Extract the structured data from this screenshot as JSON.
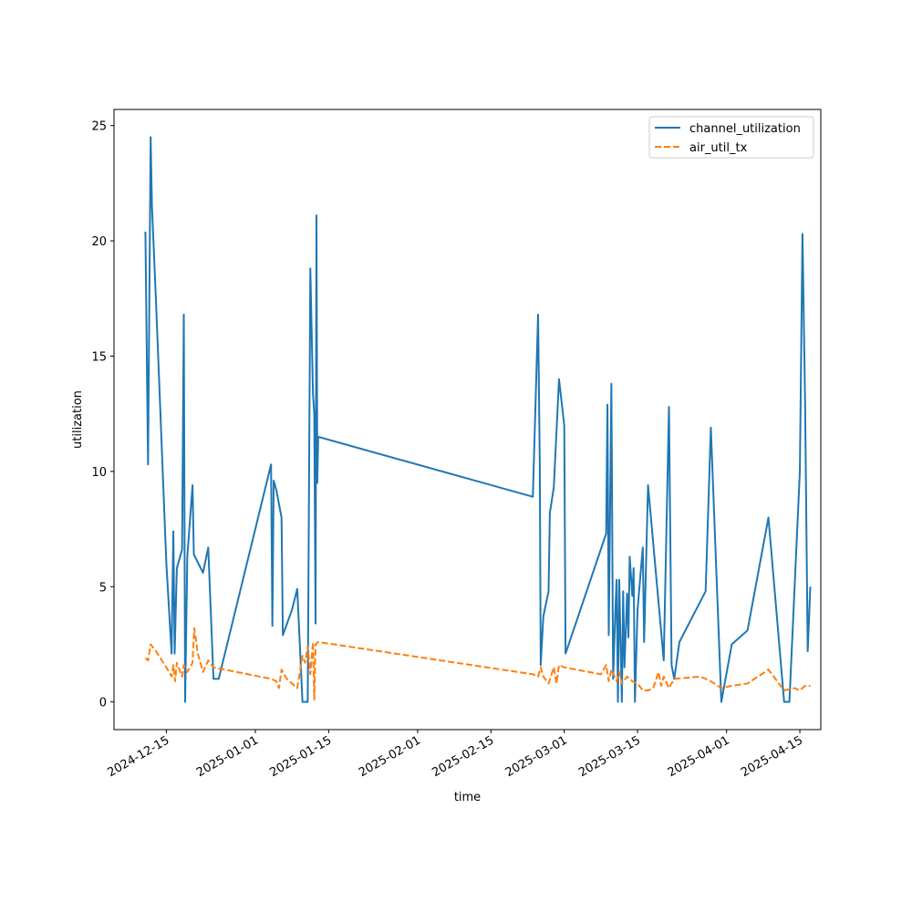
{
  "chart_data": {
    "type": "line",
    "title": "",
    "xlabel": "time",
    "ylabel": "utilization",
    "xlim": [
      "2024-12-05",
      "2025-04-19"
    ],
    "ylim": [
      -1.2,
      25.7
    ],
    "y_ticks": [
      0,
      5,
      10,
      15,
      20,
      25
    ],
    "x_ticks": [
      "2024-12-15",
      "2025-01-01",
      "2025-01-15",
      "2025-02-01",
      "2025-02-15",
      "2025-03-01",
      "2025-03-15",
      "2025-04-01",
      "2025-04-15"
    ],
    "grid": false,
    "legend_position": "top-right",
    "series": [
      {
        "name": "channel_utilization",
        "color": "#1f77b4",
        "style": "solid",
        "points": [
          [
            "2024-12-11",
            20.4
          ],
          [
            "2024-12-11 12:00",
            10.3
          ],
          [
            "2024-12-12",
            24.5
          ],
          [
            "2024-12-12 06:00",
            21.5
          ],
          [
            "2024-12-13",
            17.5
          ],
          [
            "2024-12-15",
            6.0
          ],
          [
            "2024-12-16",
            2.1
          ],
          [
            "2024-12-16 08:00",
            7.4
          ],
          [
            "2024-12-16 14:00",
            2.1
          ],
          [
            "2024-12-17",
            5.8
          ],
          [
            "2024-12-18",
            6.6
          ],
          [
            "2024-12-18 08:00",
            16.8
          ],
          [
            "2024-12-18 14:00",
            0.0
          ],
          [
            "2024-12-19",
            6.3
          ],
          [
            "2024-12-20",
            9.4
          ],
          [
            "2024-12-20 06:00",
            6.4
          ],
          [
            "2024-12-22",
            5.6
          ],
          [
            "2024-12-23",
            6.7
          ],
          [
            "2024-12-24",
            1.0
          ],
          [
            "2024-12-25",
            1.0
          ],
          [
            "2025-01-04",
            10.3
          ],
          [
            "2025-01-04 06:00",
            3.3
          ],
          [
            "2025-01-04 12:00",
            9.6
          ],
          [
            "2025-01-05",
            9.2
          ],
          [
            "2025-01-06",
            8.0
          ],
          [
            "2025-01-06 06:00",
            2.9
          ],
          [
            "2025-01-08",
            4.0
          ],
          [
            "2025-01-09",
            4.9
          ],
          [
            "2025-01-10",
            0.0
          ],
          [
            "2025-01-11",
            0.0
          ],
          [
            "2025-01-11 12:00",
            18.8
          ],
          [
            "2025-01-12",
            13.4
          ],
          [
            "2025-01-12 06:00",
            12.5
          ],
          [
            "2025-01-12 12:00",
            3.4
          ],
          [
            "2025-01-12 16:00",
            21.1
          ],
          [
            "2025-01-12 20:00",
            9.5
          ],
          [
            "2025-01-13",
            11.5
          ],
          [
            "2025-02-23",
            8.9
          ],
          [
            "2025-02-24",
            16.8
          ],
          [
            "2025-02-24 08:00",
            10.2
          ],
          [
            "2025-02-24 12:00",
            1.6
          ],
          [
            "2025-02-25",
            3.7
          ],
          [
            "2025-02-26",
            4.8
          ],
          [
            "2025-02-26 06:00",
            8.2
          ],
          [
            "2025-02-27",
            9.3
          ],
          [
            "2025-02-28",
            14.0
          ],
          [
            "2025-03-01",
            12.0
          ],
          [
            "2025-03-01 06:00",
            2.1
          ],
          [
            "2025-03-09",
            7.3
          ],
          [
            "2025-03-09 06:00",
            12.9
          ],
          [
            "2025-03-09 12:00",
            2.9
          ],
          [
            "2025-03-10",
            13.8
          ],
          [
            "2025-03-10 08:00",
            1.0
          ],
          [
            "2025-03-10 18:00",
            3.9
          ],
          [
            "2025-03-11",
            5.3
          ],
          [
            "2025-03-11 06:00",
            0.0
          ],
          [
            "2025-03-11 12:00",
            5.3
          ],
          [
            "2025-03-12",
            0.0
          ],
          [
            "2025-03-12 06:00",
            4.8
          ],
          [
            "2025-03-12 12:00",
            1.5
          ],
          [
            "2025-03-13",
            4.7
          ],
          [
            "2025-03-13 06:00",
            2.8
          ],
          [
            "2025-03-13 12:00",
            6.3
          ],
          [
            "2025-03-14",
            4.6
          ],
          [
            "2025-03-14 06:00",
            5.8
          ],
          [
            "2025-03-14 12:00",
            0.0
          ],
          [
            "2025-03-15",
            4.0
          ],
          [
            "2025-03-16",
            6.7
          ],
          [
            "2025-03-16 06:00",
            2.6
          ],
          [
            "2025-03-17",
            9.4
          ],
          [
            "2025-03-20",
            1.8
          ],
          [
            "2025-03-21",
            12.8
          ],
          [
            "2025-03-21 12:00",
            1.6
          ],
          [
            "2025-03-22",
            1.0
          ],
          [
            "2025-03-23",
            2.6
          ],
          [
            "2025-03-28",
            4.8
          ],
          [
            "2025-03-29",
            11.9
          ],
          [
            "2025-03-31",
            0.0
          ],
          [
            "2025-04-02",
            2.5
          ],
          [
            "2025-04-05",
            3.1
          ],
          [
            "2025-04-09",
            8.0
          ],
          [
            "2025-04-12",
            0.0
          ],
          [
            "2025-04-13",
            0.0
          ],
          [
            "2025-04-15",
            10.0
          ],
          [
            "2025-04-15 12:00",
            20.3
          ],
          [
            "2025-04-16",
            13.0
          ],
          [
            "2025-04-16 12:00",
            2.2
          ],
          [
            "2025-04-17",
            5.0
          ]
        ]
      },
      {
        "name": "air_util_tx",
        "color": "#ff7f0e",
        "style": "dashed",
        "points": [
          [
            "2024-12-11",
            1.9
          ],
          [
            "2024-12-11 12:00",
            1.8
          ],
          [
            "2024-12-12",
            2.5
          ],
          [
            "2024-12-13",
            2.2
          ],
          [
            "2024-12-15",
            1.5
          ],
          [
            "2024-12-16",
            1.1
          ],
          [
            "2024-12-16 08:00",
            1.6
          ],
          [
            "2024-12-16 16:00",
            0.9
          ],
          [
            "2024-12-17",
            1.7
          ],
          [
            "2024-12-18",
            1.1
          ],
          [
            "2024-12-18 08:00",
            1.6
          ],
          [
            "2024-12-19",
            1.3
          ],
          [
            "2024-12-20",
            1.7
          ],
          [
            "2024-12-20 08:00",
            3.2
          ],
          [
            "2024-12-21",
            2.1
          ],
          [
            "2024-12-22",
            1.3
          ],
          [
            "2024-12-23",
            1.8
          ],
          [
            "2024-12-24",
            1.5
          ],
          [
            "2025-01-04",
            1.0
          ],
          [
            "2025-01-05",
            0.9
          ],
          [
            "2025-01-05 12:00",
            0.6
          ],
          [
            "2025-01-06",
            1.4
          ],
          [
            "2025-01-07",
            1.0
          ],
          [
            "2025-01-08",
            0.8
          ],
          [
            "2025-01-09",
            0.6
          ],
          [
            "2025-01-10",
            2.0
          ],
          [
            "2025-01-10 12:00",
            1.7
          ],
          [
            "2025-01-11",
            2.4
          ],
          [
            "2025-01-11 12:00",
            1.2
          ],
          [
            "2025-01-12",
            2.6
          ],
          [
            "2025-01-12 06:00",
            0.1
          ],
          [
            "2025-01-12 12:00",
            2.5
          ],
          [
            "2025-01-13",
            2.6
          ],
          [
            "2025-02-23",
            1.2
          ],
          [
            "2025-02-24",
            1.1
          ],
          [
            "2025-02-24 12:00",
            1.5
          ],
          [
            "2025-02-25",
            1.1
          ],
          [
            "2025-02-26",
            0.8
          ],
          [
            "2025-02-27",
            1.5
          ],
          [
            "2025-02-27 12:00",
            0.8
          ],
          [
            "2025-02-28",
            1.6
          ],
          [
            "2025-03-01",
            1.5
          ],
          [
            "2025-03-08",
            1.2
          ],
          [
            "2025-03-09",
            1.6
          ],
          [
            "2025-03-09 12:00",
            0.9
          ],
          [
            "2025-03-10",
            1.4
          ],
          [
            "2025-03-11",
            0.9
          ],
          [
            "2025-03-11 12:00",
            1.3
          ],
          [
            "2025-03-12",
            0.8
          ],
          [
            "2025-03-13",
            1.1
          ],
          [
            "2025-03-14",
            0.9
          ],
          [
            "2025-03-15",
            0.8
          ],
          [
            "2025-03-16",
            0.5
          ],
          [
            "2025-03-17",
            0.5
          ],
          [
            "2025-03-18",
            0.6
          ],
          [
            "2025-03-19",
            1.3
          ],
          [
            "2025-03-19 12:00",
            0.7
          ],
          [
            "2025-03-20",
            1.1
          ],
          [
            "2025-03-21",
            0.6
          ],
          [
            "2025-03-22",
            1.0
          ],
          [
            "2025-03-27",
            1.1
          ],
          [
            "2025-03-29",
            0.9
          ],
          [
            "2025-03-31",
            0.6
          ],
          [
            "2025-04-02",
            0.7
          ],
          [
            "2025-04-05",
            0.8
          ],
          [
            "2025-04-09",
            1.4
          ],
          [
            "2025-04-12",
            0.5
          ],
          [
            "2025-04-14",
            0.6
          ],
          [
            "2025-04-15",
            0.5
          ],
          [
            "2025-04-16",
            0.7
          ],
          [
            "2025-04-17",
            0.7
          ]
        ]
      }
    ]
  }
}
